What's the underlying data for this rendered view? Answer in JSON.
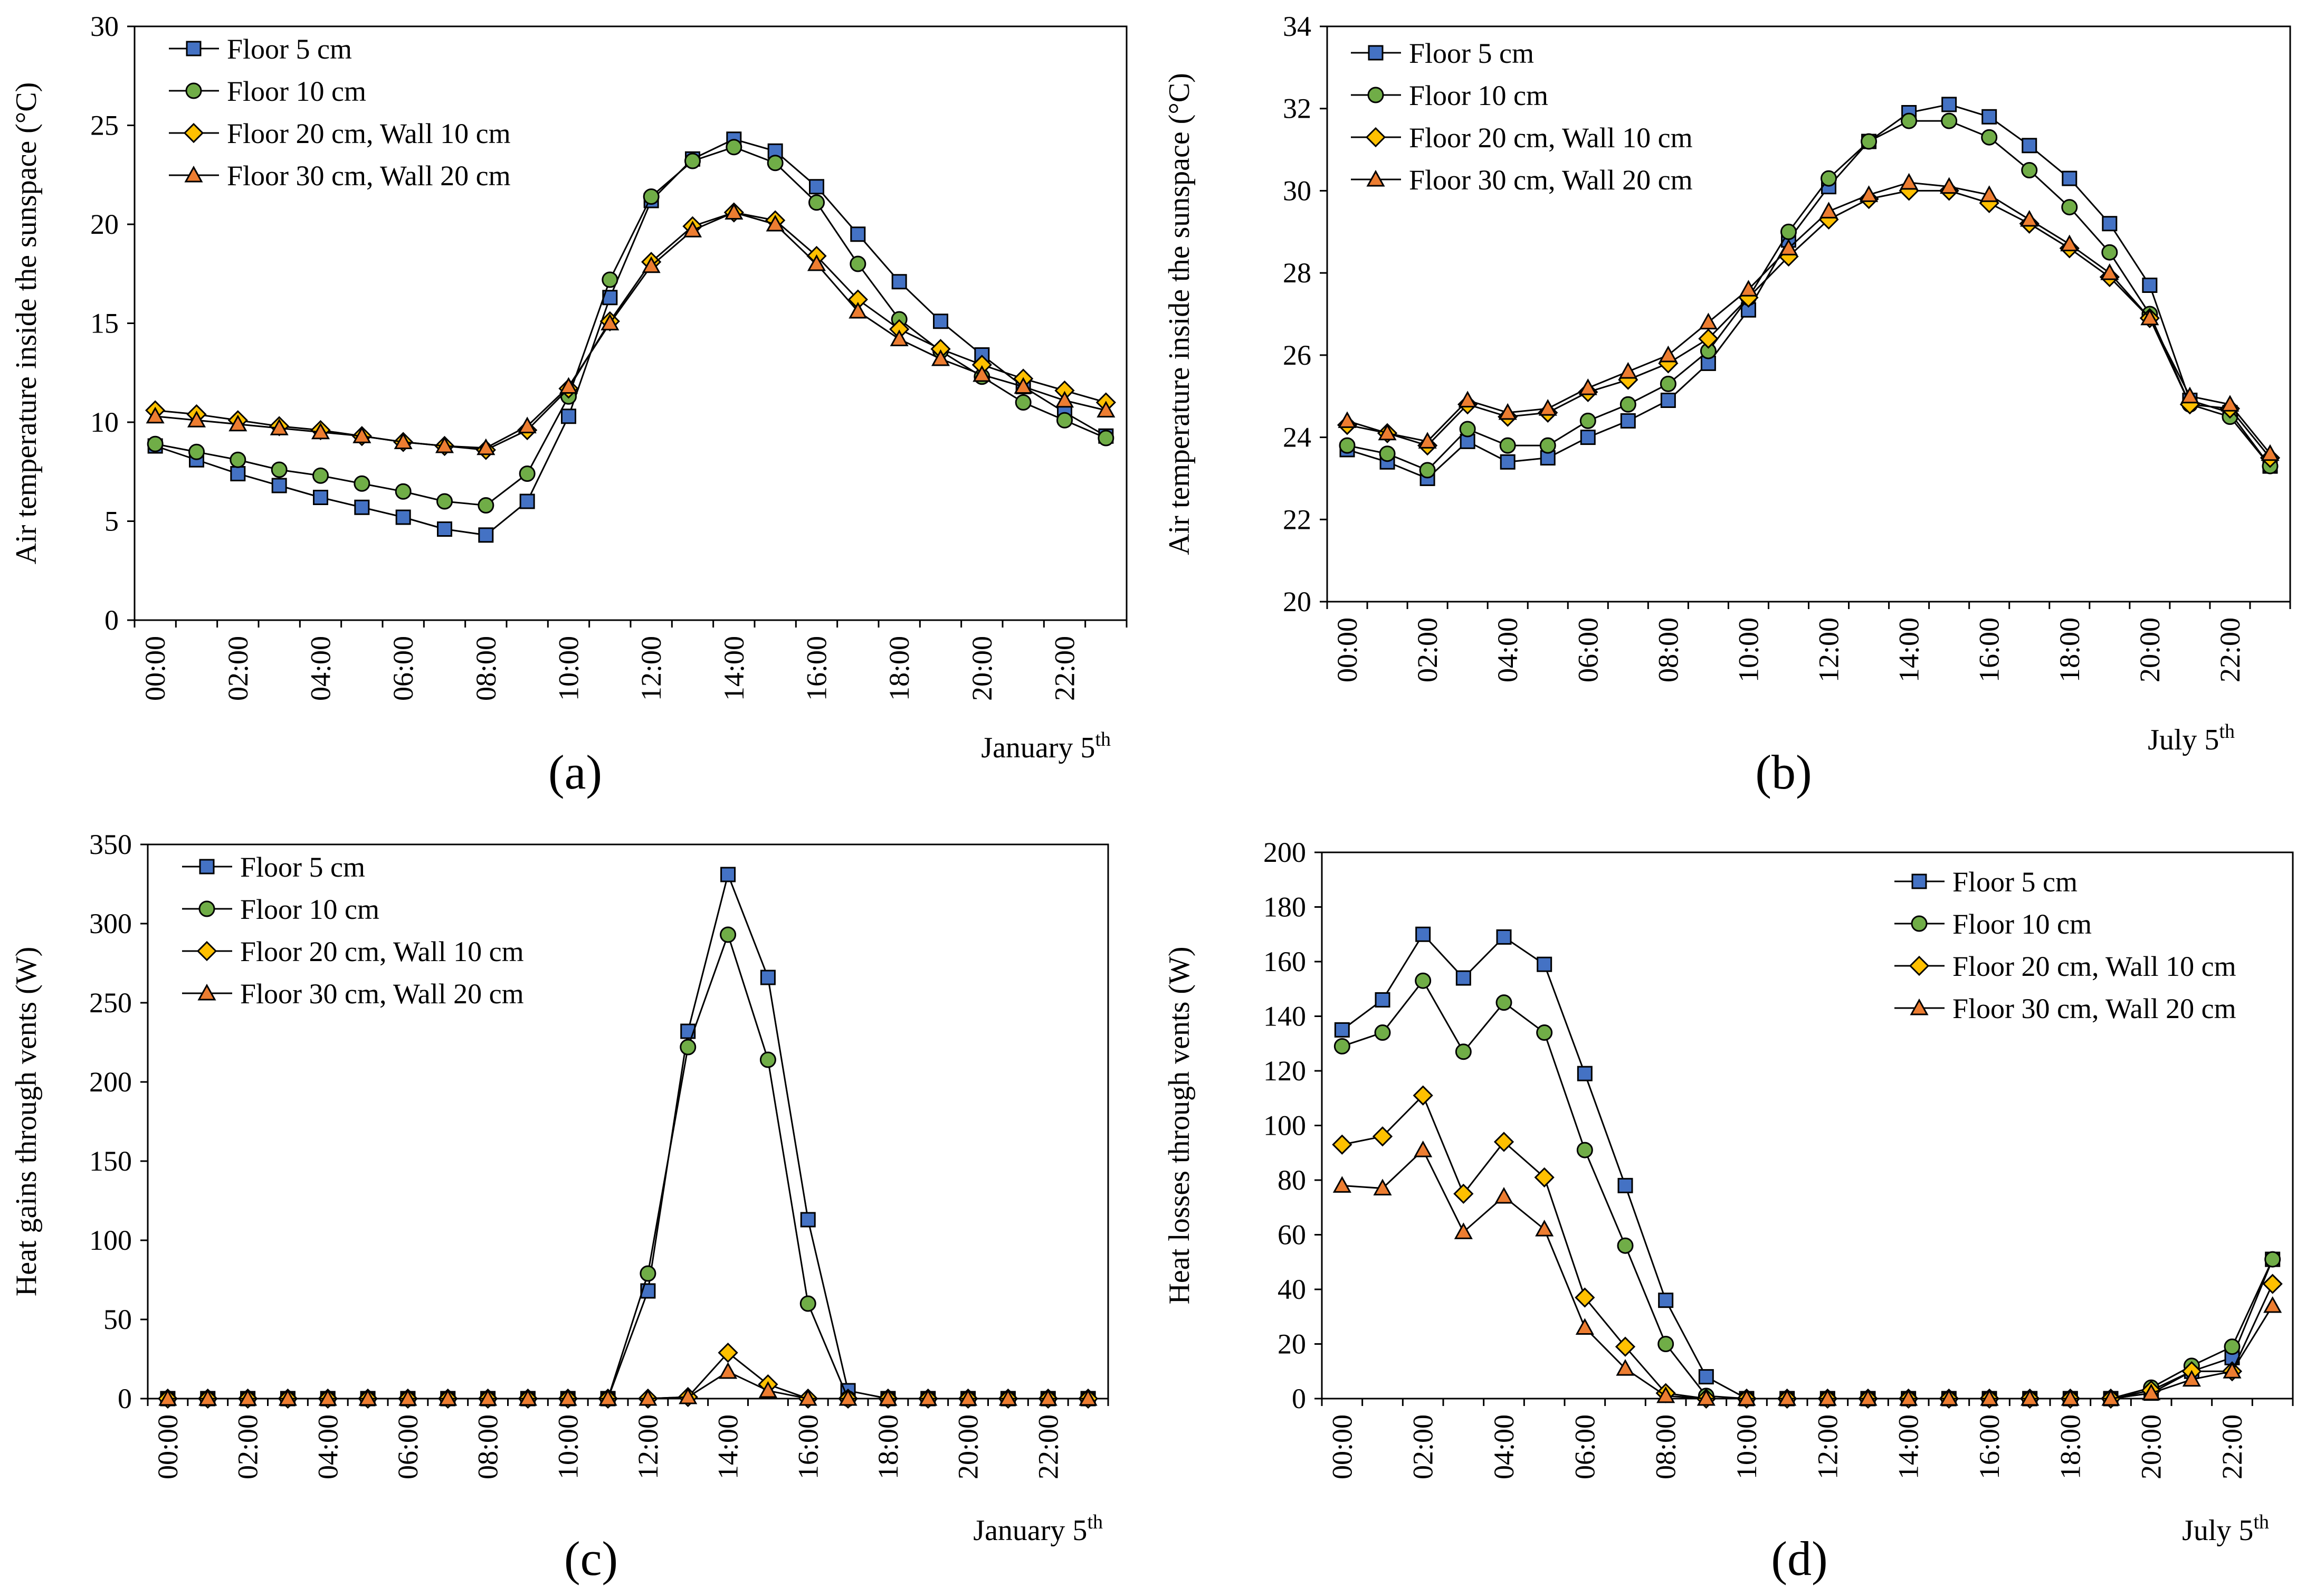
{
  "colors": {
    "floor5": "#4472C4",
    "floor10": "#70AD47",
    "floor20": "#FFC000",
    "floor30": "#ED7D31"
  },
  "panels": [
    {
      "label": "(a)"
    },
    {
      "label": "(b)"
    },
    {
      "label": "(c)"
    },
    {
      "label": "(d)"
    }
  ],
  "chart_data": [
    {
      "type": "line",
      "ylabel": "Air temperature inside the sunspace (°C)",
      "xnote": "January 5",
      "xnote_sup": "th",
      "ylim": [
        0,
        30
      ],
      "yticks": [
        0,
        5,
        10,
        15,
        20,
        25,
        30
      ],
      "x": [
        "00:00",
        "01:00",
        "02:00",
        "03:00",
        "04:00",
        "05:00",
        "06:00",
        "07:00",
        "08:00",
        "09:00",
        "10:00",
        "11:00",
        "12:00",
        "13:00",
        "14:00",
        "15:00",
        "16:00",
        "17:00",
        "18:00",
        "19:00",
        "20:00",
        "21:00",
        "22:00",
        "23:00"
      ],
      "xtick_labels": [
        "00:00",
        "02:00",
        "04:00",
        "06:00",
        "08:00",
        "10:00",
        "12:00",
        "14:00",
        "16:00",
        "18:00",
        "20:00",
        "22:00"
      ],
      "legend": "top-left",
      "series": [
        {
          "name": "Floor 5 cm",
          "marker": "square",
          "values": [
            8.8,
            8.1,
            7.4,
            6.8,
            6.2,
            5.7,
            5.2,
            4.6,
            4.3,
            6.0,
            10.3,
            16.3,
            21.2,
            23.3,
            24.3,
            23.7,
            21.9,
            19.5,
            17.1,
            15.1,
            13.4,
            11.8,
            10.5,
            9.3
          ]
        },
        {
          "name": "Floor 10 cm",
          "marker": "circle",
          "values": [
            8.9,
            8.5,
            8.1,
            7.6,
            7.3,
            6.9,
            6.5,
            6.0,
            5.8,
            7.4,
            11.3,
            17.2,
            21.4,
            23.2,
            23.9,
            23.1,
            21.1,
            18.0,
            15.2,
            13.6,
            12.3,
            11.0,
            10.1,
            9.2
          ]
        },
        {
          "name": "Floor 20 cm, Wall 10 cm",
          "marker": "diamond",
          "values": [
            10.6,
            10.4,
            10.1,
            9.8,
            9.6,
            9.3,
            9.0,
            8.8,
            8.6,
            9.6,
            11.7,
            15.1,
            18.1,
            19.9,
            20.6,
            20.2,
            18.4,
            16.2,
            14.7,
            13.7,
            12.9,
            12.2,
            11.6,
            11.0
          ]
        },
        {
          "name": "Floor 30 cm, Wall 20 cm",
          "marker": "triangle",
          "values": [
            10.3,
            10.1,
            9.9,
            9.7,
            9.5,
            9.3,
            9.0,
            8.8,
            8.7,
            9.8,
            11.8,
            15.0,
            17.9,
            19.7,
            20.6,
            20.0,
            18.0,
            15.6,
            14.2,
            13.2,
            12.4,
            11.8,
            11.1,
            10.6
          ]
        }
      ]
    },
    {
      "type": "line",
      "ylabel": "Air temperature inside the sunspace (°C)",
      "xnote": "July 5",
      "xnote_sup": "th",
      "ylim": [
        20,
        34
      ],
      "yticks": [
        20,
        22,
        24,
        26,
        28,
        30,
        32,
        34
      ],
      "x": [
        "00:00",
        "01:00",
        "02:00",
        "03:00",
        "04:00",
        "05:00",
        "06:00",
        "07:00",
        "08:00",
        "09:00",
        "10:00",
        "11:00",
        "12:00",
        "13:00",
        "14:00",
        "15:00",
        "16:00",
        "17:00",
        "18:00",
        "19:00",
        "20:00",
        "21:00",
        "22:00",
        "23:00"
      ],
      "xtick_labels": [
        "00:00",
        "02:00",
        "04:00",
        "06:00",
        "08:00",
        "10:00",
        "12:00",
        "14:00",
        "16:00",
        "18:00",
        "20:00",
        "22:00"
      ],
      "legend": "top-left",
      "series": [
        {
          "name": "Floor 5 cm",
          "marker": "square",
          "values": [
            23.7,
            23.4,
            23.0,
            23.9,
            23.4,
            23.5,
            24.0,
            24.4,
            24.9,
            25.8,
            27.1,
            28.8,
            30.1,
            31.2,
            31.9,
            32.1,
            31.8,
            31.1,
            30.3,
            29.2,
            27.7,
            24.9,
            24.6,
            23.3
          ]
        },
        {
          "name": "Floor 10 cm",
          "marker": "circle",
          "values": [
            23.8,
            23.6,
            23.2,
            24.2,
            23.8,
            23.8,
            24.4,
            24.8,
            25.3,
            26.1,
            27.4,
            29.0,
            30.3,
            31.2,
            31.7,
            31.7,
            31.3,
            30.5,
            29.6,
            28.5,
            27.0,
            24.8,
            24.5,
            23.3
          ]
        },
        {
          "name": "Floor 20 cm, Wall 10 cm",
          "marker": "diamond",
          "values": [
            24.3,
            24.1,
            23.8,
            24.8,
            24.5,
            24.6,
            25.1,
            25.4,
            25.8,
            26.4,
            27.4,
            28.4,
            29.3,
            29.8,
            30.0,
            30.0,
            29.7,
            29.2,
            28.6,
            27.9,
            26.9,
            24.8,
            24.7,
            23.5
          ]
        },
        {
          "name": "Floor 30 cm, Wall 20 cm",
          "marker": "triangle",
          "values": [
            24.4,
            24.1,
            23.9,
            24.9,
            24.6,
            24.7,
            25.2,
            25.6,
            26.0,
            26.8,
            27.6,
            28.6,
            29.5,
            29.9,
            30.2,
            30.1,
            29.9,
            29.3,
            28.7,
            28.0,
            26.9,
            25.0,
            24.8,
            23.6
          ]
        }
      ]
    },
    {
      "type": "line",
      "ylabel": "Heat gains through vents (W)",
      "xnote": "January 5",
      "xnote_sup": "th",
      "ylim": [
        0,
        350
      ],
      "yticks": [
        0,
        50,
        100,
        150,
        200,
        250,
        300,
        350
      ],
      "x": [
        "00:00",
        "01:00",
        "02:00",
        "03:00",
        "04:00",
        "05:00",
        "06:00",
        "07:00",
        "08:00",
        "09:00",
        "10:00",
        "11:00",
        "12:00",
        "13:00",
        "14:00",
        "15:00",
        "16:00",
        "17:00",
        "18:00",
        "19:00",
        "20:00",
        "21:00",
        "22:00",
        "23:00"
      ],
      "xtick_labels": [
        "00:00",
        "02:00",
        "04:00",
        "06:00",
        "08:00",
        "10:00",
        "12:00",
        "14:00",
        "16:00",
        "18:00",
        "20:00",
        "22:00"
      ],
      "legend": "top-left",
      "series": [
        {
          "name": "Floor 5 cm",
          "marker": "square",
          "values": [
            0,
            0,
            0,
            0,
            0,
            0,
            0,
            0,
            0,
            0,
            0,
            0,
            68,
            232,
            331,
            266,
            113,
            5,
            0,
            0,
            0,
            0,
            0,
            0
          ]
        },
        {
          "name": "Floor 10 cm",
          "marker": "circle",
          "values": [
            0,
            0,
            0,
            0,
            0,
            0,
            0,
            0,
            0,
            0,
            0,
            0,
            79,
            222,
            293,
            214,
            60,
            0,
            0,
            0,
            0,
            0,
            0,
            0
          ]
        },
        {
          "name": "Floor 20 cm, Wall 10 cm",
          "marker": "diamond",
          "values": [
            0,
            0,
            0,
            0,
            0,
            0,
            0,
            0,
            0,
            0,
            0,
            0,
            0,
            1,
            29,
            9,
            0,
            0,
            0,
            0,
            0,
            0,
            0,
            0
          ]
        },
        {
          "name": "Floor 30 cm, Wall 20 cm",
          "marker": "triangle",
          "values": [
            0,
            0,
            0,
            0,
            0,
            0,
            0,
            0,
            0,
            0,
            0,
            0,
            0,
            1,
            17,
            5,
            0,
            0,
            0,
            0,
            0,
            0,
            0,
            0
          ]
        }
      ]
    },
    {
      "type": "line",
      "ylabel": "Heat losses through vents (W)",
      "xnote": "July 5",
      "xnote_sup": "th",
      "ylim": [
        0,
        200
      ],
      "yticks": [
        0,
        20,
        40,
        60,
        80,
        100,
        120,
        140,
        160,
        180,
        200
      ],
      "x": [
        "00:00",
        "01:00",
        "02:00",
        "03:00",
        "04:00",
        "05:00",
        "06:00",
        "07:00",
        "08:00",
        "09:00",
        "10:00",
        "11:00",
        "12:00",
        "13:00",
        "14:00",
        "15:00",
        "16:00",
        "17:00",
        "18:00",
        "19:00",
        "20:00",
        "21:00",
        "22:00",
        "23:00"
      ],
      "xtick_labels": [
        "00:00",
        "02:00",
        "04:00",
        "06:00",
        "08:00",
        "10:00",
        "12:00",
        "14:00",
        "16:00",
        "18:00",
        "20:00",
        "22:00"
      ],
      "legend": "top-right",
      "series": [
        {
          "name": "Floor 5 cm",
          "marker": "square",
          "values": [
            135,
            146,
            170,
            154,
            169,
            159,
            119,
            78,
            36,
            8,
            0,
            0,
            0,
            0,
            0,
            0,
            0,
            0,
            0,
            0,
            2,
            10,
            15,
            51
          ]
        },
        {
          "name": "Floor 10 cm",
          "marker": "circle",
          "values": [
            129,
            134,
            153,
            127,
            145,
            134,
            91,
            56,
            20,
            1,
            0,
            0,
            0,
            0,
            0,
            0,
            0,
            0,
            0,
            0,
            4,
            12,
            19,
            51
          ]
        },
        {
          "name": "Floor 20 cm, Wall 10 cm",
          "marker": "diamond",
          "values": [
            93,
            96,
            111,
            75,
            94,
            81,
            37,
            19,
            2,
            0,
            0,
            0,
            0,
            0,
            0,
            0,
            0,
            0,
            0,
            0,
            3,
            10,
            10,
            42
          ]
        },
        {
          "name": "Floor 30 cm, Wall 20 cm",
          "marker": "triangle",
          "values": [
            78,
            77,
            91,
            61,
            74,
            62,
            26,
            11,
            1,
            0,
            0,
            0,
            0,
            0,
            0,
            0,
            0,
            0,
            0,
            0,
            2,
            7,
            10,
            34
          ]
        }
      ]
    }
  ]
}
